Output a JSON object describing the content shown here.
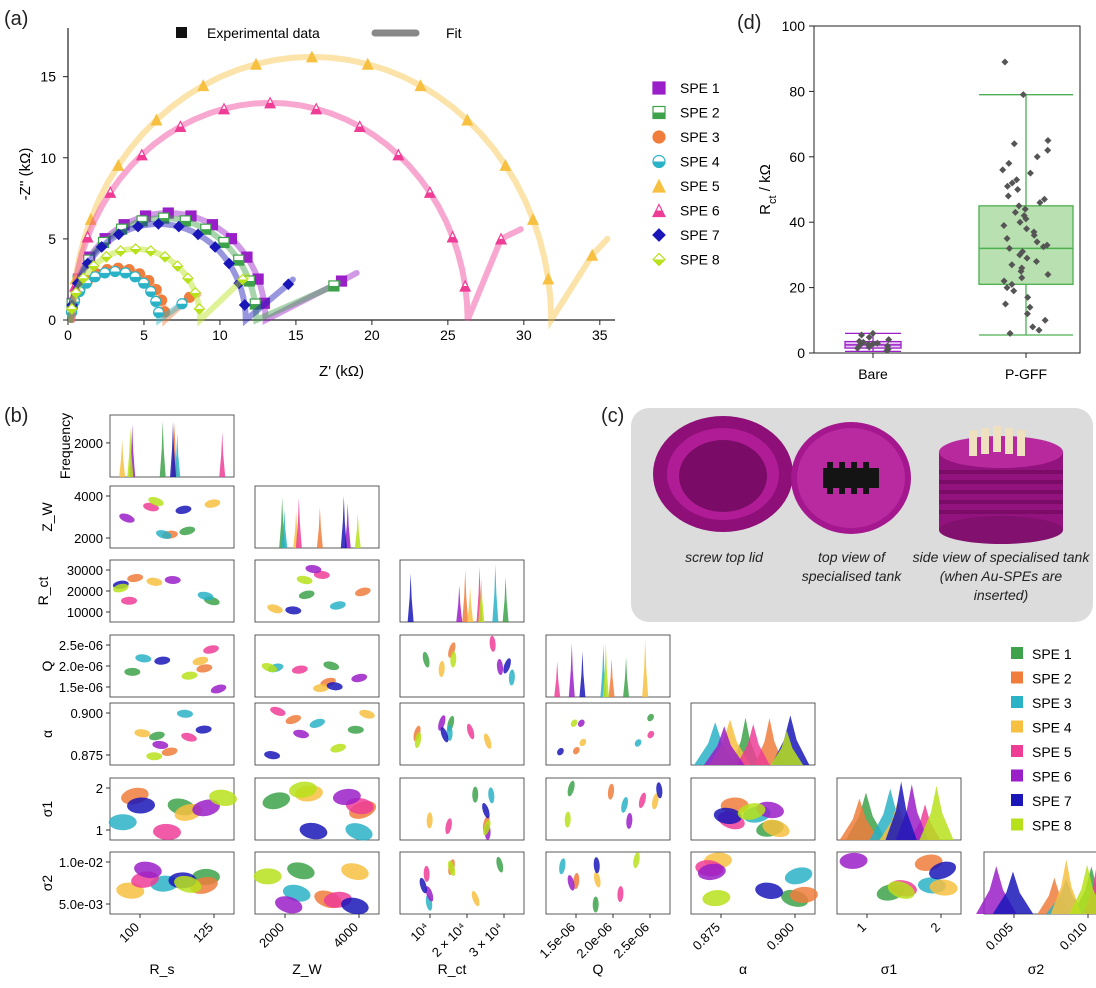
{
  "panels": {
    "a": "(a)",
    "b": "(b)",
    "c": "(c)",
    "d": "(d)"
  },
  "colors": {
    "spe1_a": "#9a1fc8",
    "spe2_a": "#3da24a",
    "spe3_a": "#f07d3c",
    "spe4_a": "#2ab2c6",
    "spe5_a": "#f7c040",
    "spe6_a": "#ef3d96",
    "spe7_a": "#1a16b8",
    "spe8_a": "#b7e21b",
    "box_fill_pgff": "#b8e0b0",
    "box_stroke_pgff": "#4caf50",
    "box_stroke_bare": "#9a1fc8",
    "photo_bg": "#dcdcdc",
    "tank": "#a0168a"
  },
  "chart_data": [
    {
      "id": "a",
      "type": "scatter",
      "xlabel": "Z' (kΩ)",
      "ylabel": "-Z'' (kΩ)",
      "xlim": [
        0,
        36
      ],
      "ylim": [
        0,
        18
      ],
      "xticks": [
        0,
        5,
        10,
        15,
        20,
        25,
        30,
        35
      ],
      "yticks": [
        0,
        5,
        10,
        15
      ],
      "legend_top": {
        "experimental": "Experimental data",
        "fit": "Fit"
      },
      "legend_placement": "right",
      "series": [
        {
          "name": "SPE 1",
          "marker": "square",
          "color": "#9a1fc8",
          "rs": 0.2,
          "rct": 12.8,
          "tail_x": 18.0,
          "tail_y": 2.4,
          "end_x": 19.0,
          "end_y": 2.9
        },
        {
          "name": "SPE 2",
          "marker": "square-half",
          "color": "#3da24a",
          "rs": 0.2,
          "rct": 12.2,
          "tail_x": 17.5,
          "tail_y": 2.1,
          "end_x": 17.8,
          "end_y": 2.3
        },
        {
          "name": "SPE 3",
          "marker": "circle",
          "color": "#f07d3c",
          "rs": 0.2,
          "rct": 6.2,
          "tail_x": 8.0,
          "tail_y": 1.4,
          "end_x": 8.6,
          "end_y": 1.6
        },
        {
          "name": "SPE 4",
          "marker": "circle-half",
          "color": "#2ab2c6",
          "rs": 0.2,
          "rct": 5.8,
          "tail_x": 7.5,
          "tail_y": 1.0,
          "end_x": 7.7,
          "end_y": 1.2
        },
        {
          "name": "SPE 5",
          "marker": "triangle",
          "color": "#f7c040",
          "rs": 0.3,
          "rct": 31.5,
          "tail_x": 34.5,
          "tail_y": 4.0,
          "end_x": 35.5,
          "end_y": 5.0
        },
        {
          "name": "SPE 6",
          "marker": "triangle-half",
          "color": "#ef3d96",
          "rs": 0.3,
          "rct": 26.0,
          "tail_x": 28.5,
          "tail_y": 5.0,
          "end_x": 29.8,
          "end_y": 5.6
        },
        {
          "name": "SPE 7",
          "marker": "diamond",
          "color": "#1a16b8",
          "rs": 0.2,
          "rct": 11.5,
          "tail_x": 14.5,
          "tail_y": 2.2,
          "end_x": 14.8,
          "end_y": 2.5
        },
        {
          "name": "SPE 8",
          "marker": "diamond-half",
          "color": "#b7e21b",
          "rs": 0.2,
          "rct": 8.5,
          "tail_x": 11.5,
          "tail_y": 2.5,
          "end_x": 11.8,
          "end_y": 2.7
        }
      ]
    },
    {
      "id": "d",
      "type": "box",
      "categories": [
        "Bare",
        "P-GFF"
      ],
      "ylabel": "R_ct / kΩ",
      "ylim": [
        0,
        100
      ],
      "yticks": [
        0,
        20,
        40,
        60,
        80,
        100
      ],
      "boxes": [
        {
          "name": "Bare",
          "min": 0.5,
          "q1": 1.5,
          "median": 2.5,
          "q3": 3.5,
          "max": 6.0,
          "points": [
            0.8,
            1.2,
            1.5,
            1.8,
            2.1,
            2.4,
            2.6,
            2.8,
            3.0,
            3.3,
            3.6,
            4.1,
            4.8,
            5.5,
            6.0
          ]
        },
        {
          "name": "P-GFF",
          "min": 5.5,
          "q1": 21,
          "median": 32,
          "q3": 45,
          "max": 79,
          "points": [
            6,
            7,
            8,
            10,
            12,
            14,
            15,
            17,
            19,
            20,
            21,
            22,
            23,
            24,
            25,
            26,
            27,
            28,
            29,
            30,
            31,
            32,
            32.5,
            33,
            34,
            35,
            36,
            37,
            38,
            39,
            40,
            41,
            42,
            43,
            44,
            45,
            46,
            47,
            48,
            50,
            51,
            52,
            53,
            55,
            56,
            58,
            60,
            62,
            64,
            65,
            79,
            89
          ]
        }
      ]
    },
    {
      "id": "b",
      "type": "scatter",
      "variables": [
        "R_s",
        "Z_W",
        "R_ct",
        "Q",
        "α",
        "σ1",
        "σ2"
      ],
      "xlabels": [
        "R_s",
        "Z_W",
        "R_ct",
        "Q",
        "α",
        "σ1",
        "σ2"
      ],
      "ylabels": [
        "Frequency",
        "Z_W",
        "R_ct",
        "Q",
        "α",
        "σ1",
        "σ2"
      ],
      "xticks": [
        [
          "100",
          "125"
        ],
        [
          "2000",
          "4000"
        ],
        [
          "10⁴",
          "2 × 10⁴",
          "3 × 10⁴"
        ],
        [
          "1.5e-06",
          "2.0e-06",
          "2.5e-06"
        ],
        [
          "0.875",
          "0.900"
        ],
        [
          "1",
          "2"
        ],
        [
          "0.005",
          "0.010"
        ]
      ],
      "yticks": [
        [
          "2000"
        ],
        [
          "2000",
          "4000"
        ],
        [
          "10000",
          "20000",
          "30000"
        ],
        [
          "1.5e-06",
          "2.0e-06",
          "2.5e-06"
        ],
        [
          "0.875",
          "0.900"
        ],
        [
          "1",
          "2"
        ],
        [
          "5.0e-03",
          "1.0e-02"
        ]
      ],
      "legend_placement": "right",
      "series_names": [
        "SPE 1",
        "SPE 2",
        "SPE 3",
        "SPE 4",
        "SPE 5",
        "SPE 6",
        "SPE 7",
        "SPE 8"
      ],
      "series_colors": [
        "#3da24a",
        "#f07d3c",
        "#2ab2c6",
        "#f7c040",
        "#ef3d96",
        "#9a1fc8",
        "#1a16b8",
        "#b7e21b"
      ],
      "means": {
        "R_s": [
          82,
          86,
          92,
          88,
          104,
          120,
          126,
          112
        ],
        "Z_W": [
          1350,
          1100,
          900,
          3000,
          3200,
          2200,
          1900,
          1600
        ],
        "R_ct": [
          14500,
          8000,
          7500,
          31000,
          25000,
          17000,
          12000,
          16000
        ],
        "Q": [
          2.4e-06,
          2.15e-06,
          2.1e-06,
          1.6e-06,
          2.35e-06,
          1.4e-06,
          2.55e-06,
          2.3e-06
        ],
        "α": [
          0.884,
          0.872,
          0.893,
          0.878,
          0.88,
          0.879,
          0.873,
          0.877
        ],
        "σ1": [
          1.05,
          1.02,
          1.0,
          1.05,
          1.0,
          1.1,
          1.0,
          1.2
        ],
        "σ2": [
          0.0055,
          0.0052,
          0.0048,
          0.0058,
          0.0052,
          0.0068,
          0.006,
          0.0064
        ]
      }
    }
  ],
  "legend_b": [
    "SPE 1",
    "SPE 2",
    "SPE 3",
    "SPE 4",
    "SPE 5",
    "SPE 6",
    "SPE 7",
    "SPE 8"
  ],
  "photos": {
    "captions": [
      "screw top lid",
      "top view of specialised tank",
      "side view of specialised tank (when Au-SPEs are inserted)"
    ]
  }
}
